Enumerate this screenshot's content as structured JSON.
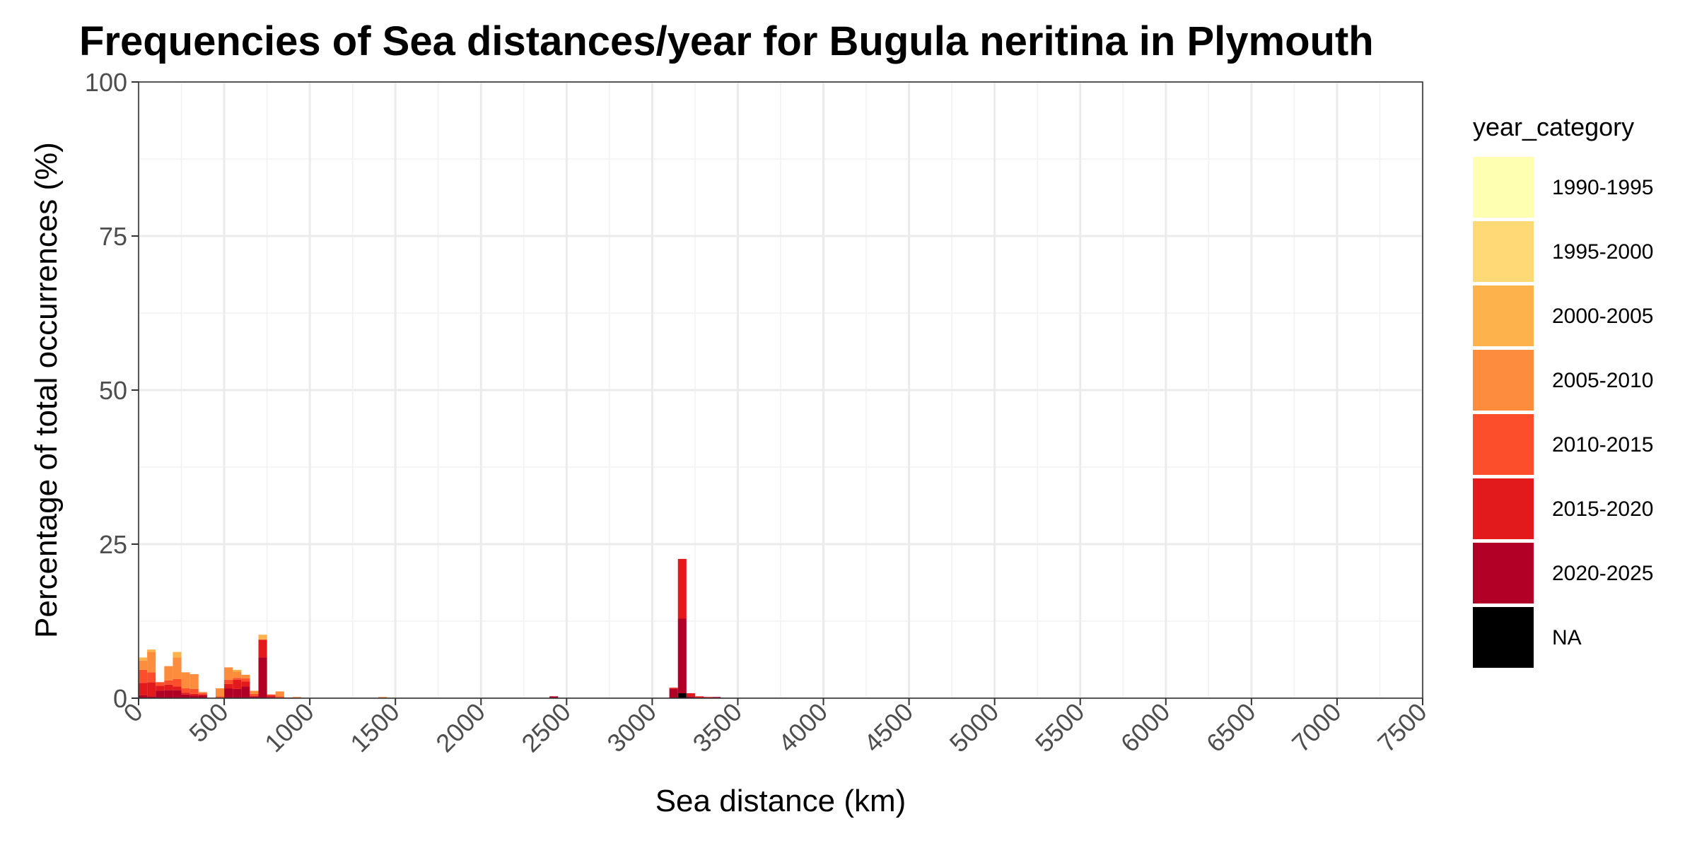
{
  "chart_data": {
    "type": "bar",
    "stacked": true,
    "title": "Frequencies of Sea distances/year for Bugula neritina in Plymouth",
    "xlabel": "Sea distance (km)",
    "ylabel": "Percentage of total occurrences (%)",
    "xlim": [
      0,
      7500
    ],
    "ylim": [
      0,
      100
    ],
    "x_ticks": [
      0,
      500,
      1000,
      1500,
      2000,
      2500,
      3000,
      3500,
      4000,
      4500,
      5000,
      5500,
      6000,
      6500,
      7000,
      7500
    ],
    "y_ticks": [
      0,
      25,
      50,
      75,
      100
    ],
    "bin_width": 50,
    "grid": true,
    "legend": {
      "title": "year_category",
      "position": "right"
    },
    "colors": {
      "1990-1995": "#ffffb2",
      "1995-2000": "#fed976",
      "2000-2005": "#feb24c",
      "2005-2010": "#fd8d3c",
      "2010-2015": "#fc4e2a",
      "2015-2020": "#e31a1c",
      "2020-2025": "#b10026",
      "NA": "#000000"
    },
    "series": [
      {
        "name": "1990-1995",
        "values": []
      },
      {
        "name": "1995-2000",
        "values": []
      },
      {
        "name": "2000-2005",
        "values": [
          {
            "x": 25,
            "y": 0.5
          },
          {
            "x": 75,
            "y": 0.4
          },
          {
            "x": 225,
            "y": 0.9
          },
          {
            "x": 575,
            "y": 0.3
          },
          {
            "x": 725,
            "y": 0.8
          }
        ]
      },
      {
        "name": "2005-2010",
        "values": [
          {
            "x": 25,
            "y": 1.5
          },
          {
            "x": 75,
            "y": 3.3
          },
          {
            "x": 175,
            "y": 2.3
          },
          {
            "x": 225,
            "y": 3.5
          },
          {
            "x": 275,
            "y": 2.6
          },
          {
            "x": 325,
            "y": 2.4
          },
          {
            "x": 375,
            "y": 0.2
          },
          {
            "x": 475,
            "y": 1.3
          },
          {
            "x": 525,
            "y": 2.0
          },
          {
            "x": 575,
            "y": 1.0
          },
          {
            "x": 625,
            "y": 0.6
          },
          {
            "x": 675,
            "y": 0.5
          },
          {
            "x": 825,
            "y": 0.8
          },
          {
            "x": 925,
            "y": 0.2
          },
          {
            "x": 1425,
            "y": 0.2
          }
        ]
      },
      {
        "name": "2010-2015",
        "values": [
          {
            "x": 25,
            "y": 2.1
          },
          {
            "x": 75,
            "y": 1.6
          },
          {
            "x": 125,
            "y": 0.6
          },
          {
            "x": 175,
            "y": 0.7
          },
          {
            "x": 225,
            "y": 1.2
          },
          {
            "x": 275,
            "y": 0.7
          },
          {
            "x": 325,
            "y": 0.8
          },
          {
            "x": 375,
            "y": 0.2
          },
          {
            "x": 475,
            "y": 0.3
          },
          {
            "x": 525,
            "y": 0.7
          },
          {
            "x": 575,
            "y": 0.3
          },
          {
            "x": 625,
            "y": 0.5
          },
          {
            "x": 675,
            "y": 0.4
          },
          {
            "x": 775,
            "y": 0.2
          },
          {
            "x": 825,
            "y": 0.3
          }
        ]
      },
      {
        "name": "2015-2020",
        "values": [
          {
            "x": 25,
            "y": 2.0
          },
          {
            "x": 75,
            "y": 2.3
          },
          {
            "x": 125,
            "y": 0.8
          },
          {
            "x": 175,
            "y": 0.9
          },
          {
            "x": 225,
            "y": 0.6
          },
          {
            "x": 275,
            "y": 0.3
          },
          {
            "x": 325,
            "y": 0.3
          },
          {
            "x": 375,
            "y": 0.2
          },
          {
            "x": 525,
            "y": 0.7
          },
          {
            "x": 575,
            "y": 1.5
          },
          {
            "x": 625,
            "y": 0.8
          },
          {
            "x": 725,
            "y": 2.9
          },
          {
            "x": 775,
            "y": 0.2
          },
          {
            "x": 875,
            "y": 0.1
          },
          {
            "x": 3125,
            "y": 0.2
          },
          {
            "x": 3175,
            "y": 9.7
          },
          {
            "x": 3225,
            "y": 0.5
          },
          {
            "x": 3275,
            "y": 0.2
          },
          {
            "x": 3325,
            "y": 0.2
          }
        ]
      },
      {
        "name": "2020-2025",
        "values": [
          {
            "x": 25,
            "y": 0.5
          },
          {
            "x": 75,
            "y": 0.3
          },
          {
            "x": 125,
            "y": 1.2
          },
          {
            "x": 175,
            "y": 1.3
          },
          {
            "x": 225,
            "y": 1.3
          },
          {
            "x": 275,
            "y": 0.6
          },
          {
            "x": 325,
            "y": 0.4
          },
          {
            "x": 375,
            "y": 0.4
          },
          {
            "x": 525,
            "y": 1.6
          },
          {
            "x": 575,
            "y": 1.5
          },
          {
            "x": 625,
            "y": 1.9
          },
          {
            "x": 675,
            "y": 0.3
          },
          {
            "x": 725,
            "y": 6.6
          },
          {
            "x": 775,
            "y": 0.2
          },
          {
            "x": 2425,
            "y": 0.3
          },
          {
            "x": 3125,
            "y": 1.5
          },
          {
            "x": 3175,
            "y": 12.1
          },
          {
            "x": 3225,
            "y": 0.3
          },
          {
            "x": 3275,
            "y": 0.1
          },
          {
            "x": 3375,
            "y": 0.2
          }
        ]
      },
      {
        "name": "NA",
        "values": [
          {
            "x": 3175,
            "y": 0.8
          }
        ]
      }
    ]
  }
}
